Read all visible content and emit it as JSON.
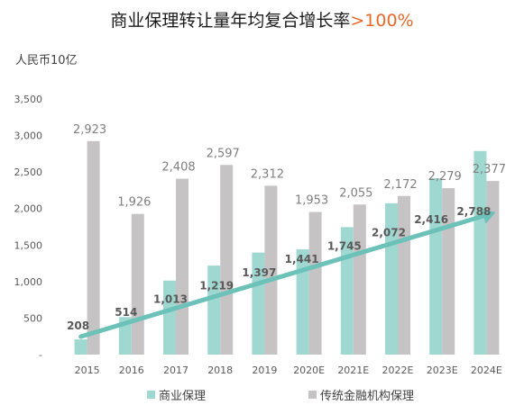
{
  "title": {
    "main": "商业保理转让量年均复合增长率",
    "highlight": ">100%"
  },
  "unit_label": "人民币10亿",
  "colors": {
    "commercial": "#9fd8d1",
    "traditional": "#c5c3c4",
    "arrow": "#6cc1b8",
    "highlight": "#e8682a"
  },
  "chart_data": {
    "type": "bar",
    "title": "商业保理转让量年均复合增长率>100%",
    "ylabel": "人民币10亿",
    "xlabel": "",
    "categories": [
      "2015",
      "2016",
      "2017",
      "2018",
      "2019",
      "2020E",
      "2021E",
      "2022E",
      "2023E",
      "2024E"
    ],
    "ylim": [
      0,
      3500
    ],
    "yticks": [
      "-",
      "500",
      "1,000",
      "1,500",
      "2,000",
      "2,500",
      "3,000",
      "3,500"
    ],
    "ytick_values": [
      0,
      500,
      1000,
      1500,
      2000,
      2500,
      3000,
      3500
    ],
    "grid": false,
    "legend": "bottom",
    "series": [
      {
        "name": "商业保理",
        "values": [
          208,
          514,
          1013,
          1219,
          1397,
          1441,
          1745,
          2072,
          2416,
          2788
        ],
        "labels": [
          "208",
          "514",
          "1,013",
          "1,219",
          "1,397",
          "1,441",
          "1,745",
          "2,072",
          "2,416",
          "2,788"
        ]
      },
      {
        "name": "传统金融机构保理",
        "values": [
          2923,
          1926,
          2408,
          2597,
          2312,
          1953,
          2055,
          2172,
          2279,
          2377
        ],
        "labels": [
          "2,923",
          "1,926",
          "2,408",
          "2,597",
          "2,312",
          "1,953",
          "2,055",
          "2,172",
          "2,279",
          "2,377"
        ]
      }
    ],
    "trend_arrow": {
      "from_category": "2015",
      "to_category": "2024E",
      "direction": "up"
    }
  }
}
